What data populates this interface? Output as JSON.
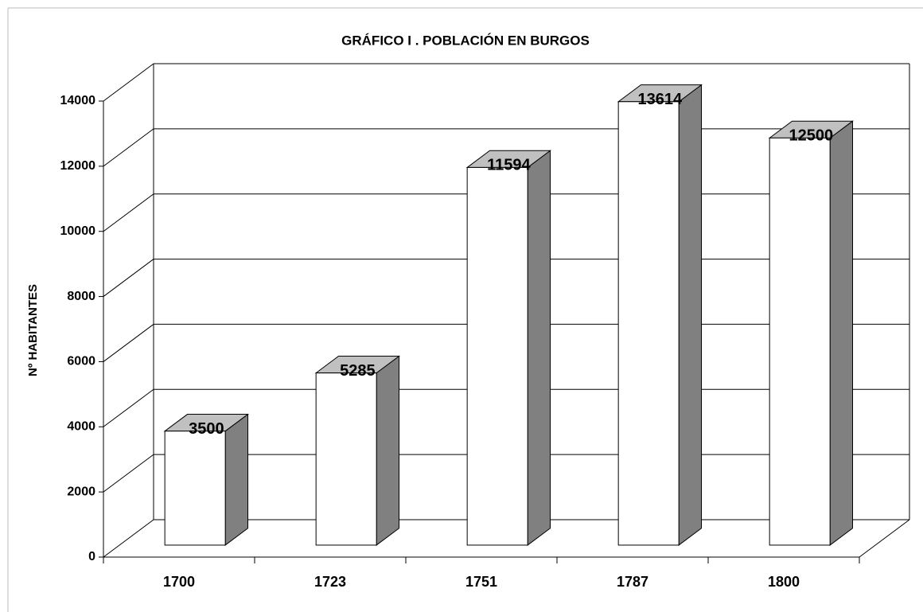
{
  "chart_data": {
    "type": "bar3d",
    "title": "GRÁFICO I   . POBLACIÓN EN BURGOS",
    "y_label": "Nº HABITANTES",
    "categories": [
      "1700",
      "1723",
      "1751",
      "1787",
      "1800"
    ],
    "values": [
      3500,
      5285,
      11594,
      13614,
      12500
    ],
    "color": "#ffffff",
    "ylim": [
      0,
      14000
    ],
    "yticks": [
      0,
      2000,
      4000,
      6000,
      8000,
      10000,
      12000,
      14000
    ],
    "grid": true
  }
}
